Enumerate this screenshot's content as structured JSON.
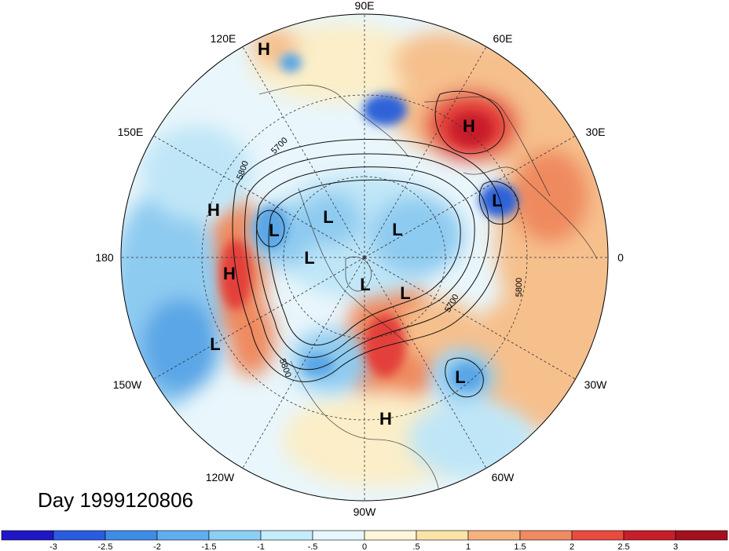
{
  "map": {
    "day_label": "Day 1999120806",
    "longitude_labels": [
      "90E",
      "60E",
      "30E",
      "0",
      "30W",
      "60W",
      "90W",
      "120W",
      "150W",
      "180",
      "150E",
      "120E"
    ],
    "contour_labels": [
      "5700",
      "5800",
      "5700",
      "5800",
      "5800"
    ],
    "pressure_centers": [
      {
        "type": "H"
      },
      {
        "type": "H"
      },
      {
        "type": "H"
      },
      {
        "type": "H"
      },
      {
        "type": "H"
      },
      {
        "type": "L"
      },
      {
        "type": "L"
      },
      {
        "type": "L"
      },
      {
        "type": "L"
      },
      {
        "type": "L"
      },
      {
        "type": "L"
      },
      {
        "type": "L"
      },
      {
        "type": "L"
      },
      {
        "type": "L"
      }
    ]
  },
  "colorbar": {
    "tick_labels": [
      "-3",
      "-2.5",
      "-2",
      "-1.5",
      "-1",
      "-.5",
      "0",
      ".5",
      "1",
      "1.5",
      "2",
      "2.5",
      "3"
    ],
    "colors": [
      "#1f16c8",
      "#2a5ce0",
      "#3f8be8",
      "#60aef0",
      "#8ccff5",
      "#c4ecfa",
      "#e6f7fd",
      "#fdf6d8",
      "#f9e3a8",
      "#f6b27f",
      "#f18a62",
      "#eb4a40",
      "#c81e2a",
      "#a5101e"
    ]
  },
  "palette": {
    "ocean_base": "#e9f6fb",
    "cold_light": "#bfe6f7",
    "cold_mid": "#8ecbf0",
    "cold_deep": "#5aa6e6",
    "cold_core": "#2f63d8",
    "warm_light": "#fbeec8",
    "warm_mid": "#f6c08d",
    "warm_deep": "#ef8a5e",
    "warm_core": "#e3413b"
  }
}
